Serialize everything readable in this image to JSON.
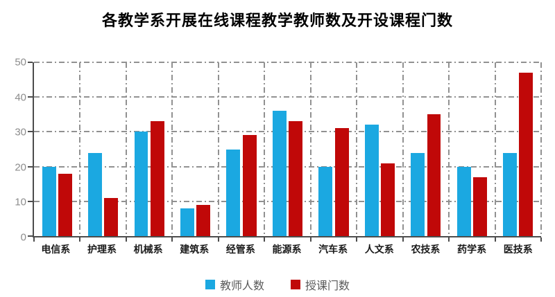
{
  "title": "各教学系开展在线课程教学教师数及开设课程门数",
  "chart_data": {
    "type": "bar",
    "title": "各教学系开展在线课程教学教师数及开设课程门数",
    "categories": [
      "电信系",
      "护理系",
      "机械系",
      "建筑系",
      "经管系",
      "能源系",
      "汽车系",
      "人文系",
      "农技系",
      "药学系",
      "医技系"
    ],
    "series": [
      {
        "name": "教师人数",
        "color": "#1BA8E1",
        "values": [
          20,
          24,
          30,
          8,
          25,
          36,
          20,
          32,
          24,
          20,
          24
        ]
      },
      {
        "name": "授课门数",
        "color": "#C00808",
        "values": [
          18,
          11,
          33,
          9,
          29,
          33,
          31,
          21,
          35,
          17,
          47
        ]
      }
    ],
    "xlabel": "",
    "ylabel": "",
    "ylim": [
      0,
      50
    ],
    "yticks": [
      0,
      10,
      20,
      30,
      40,
      50
    ],
    "grid": true,
    "gridline_style": "dash-dot",
    "gridline_color": "#919191",
    "axis_color": "#4c4c4c",
    "legend_position": "bottom"
  }
}
